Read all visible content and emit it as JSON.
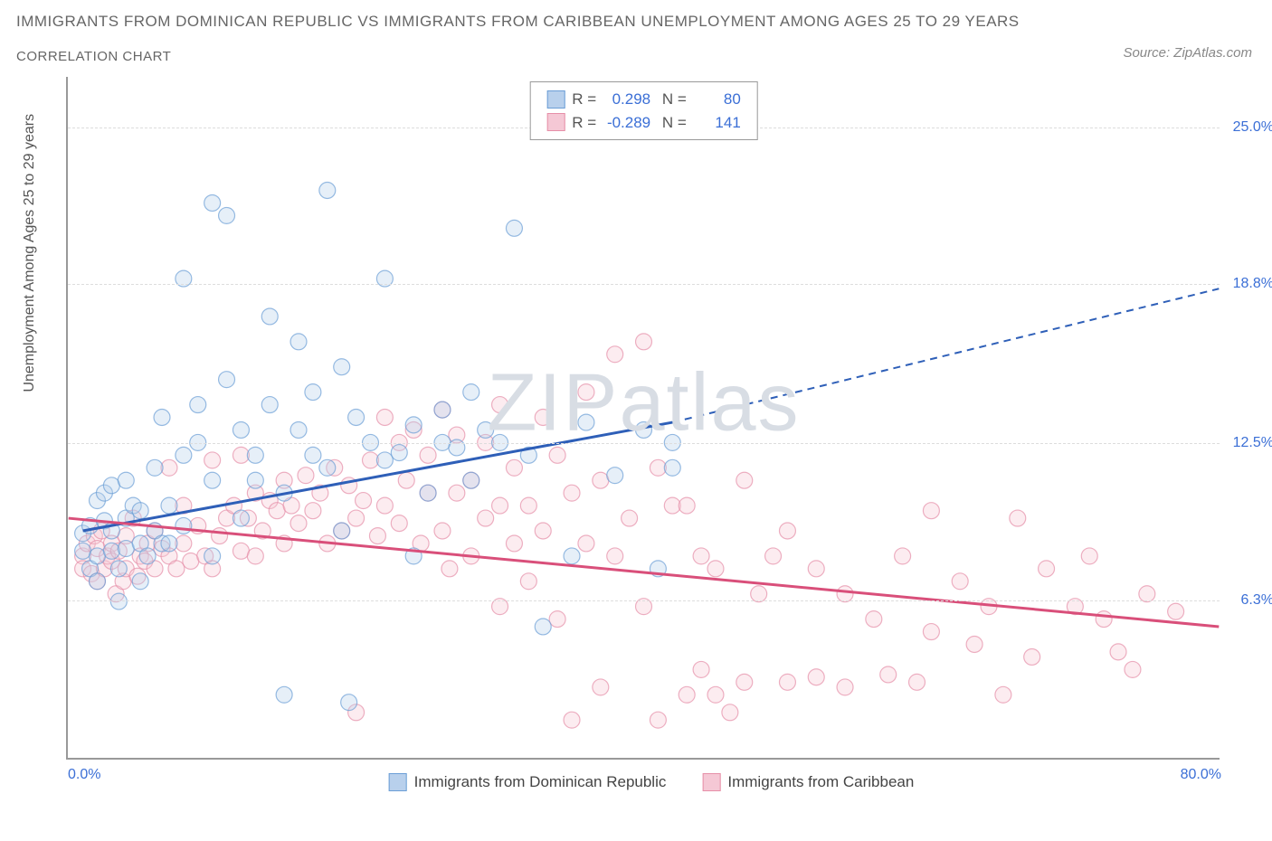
{
  "title": "IMMIGRANTS FROM DOMINICAN REPUBLIC VS IMMIGRANTS FROM CARIBBEAN UNEMPLOYMENT AMONG AGES 25 TO 29 YEARS",
  "subtitle": "CORRELATION CHART",
  "source": "Source: ZipAtlas.com",
  "ylabel": "Unemployment Among Ages 25 to 29 years",
  "watermark": "ZIPatlas",
  "chart": {
    "type": "scatter",
    "xlim": [
      0,
      80
    ],
    "ylim": [
      0,
      27
    ],
    "xticks": [
      {
        "pos": 0,
        "label": "0.0%"
      },
      {
        "pos": 80,
        "label": "80.0%"
      }
    ],
    "yticks": [
      {
        "pos": 6.3,
        "label": "6.3%"
      },
      {
        "pos": 12.5,
        "label": "12.5%"
      },
      {
        "pos": 18.8,
        "label": "18.8%"
      },
      {
        "pos": 25.0,
        "label": "25.0%"
      }
    ],
    "gridlines": [
      6.3,
      12.5,
      18.8,
      25.0
    ],
    "background_color": "#ffffff",
    "grid_color": "#dddddd",
    "axis_color": "#999999",
    "marker_radius": 9,
    "marker_opacity": 0.35,
    "series": [
      {
        "name": "Immigrants from Dominican Republic",
        "R": "0.298",
        "N": "80",
        "color": "#6b9ed6",
        "fill": "#b8d0ec",
        "line_color": "#2e5fb8",
        "trend": {
          "x1": 1,
          "y1": 9.0,
          "x2": 42,
          "y2": 13.3,
          "dash_x2": 80,
          "dash_y2": 18.6
        },
        "points": [
          [
            1,
            8.2
          ],
          [
            1,
            8.9
          ],
          [
            1.5,
            7.5
          ],
          [
            1.5,
            9.2
          ],
          [
            2,
            10.2
          ],
          [
            2,
            8.0
          ],
          [
            2,
            7.0
          ],
          [
            2.5,
            10.5
          ],
          [
            2.5,
            9.4
          ],
          [
            3,
            9.0
          ],
          [
            3,
            10.8
          ],
          [
            3,
            8.2
          ],
          [
            3.5,
            7.5
          ],
          [
            3.5,
            6.2
          ],
          [
            4,
            9.5
          ],
          [
            4,
            11.0
          ],
          [
            4,
            8.3
          ],
          [
            4.5,
            10.0
          ],
          [
            5,
            8.5
          ],
          [
            5,
            9.8
          ],
          [
            5,
            7.0
          ],
          [
            5.5,
            8.0
          ],
          [
            6,
            11.5
          ],
          [
            6,
            9.0
          ],
          [
            6.5,
            13.5
          ],
          [
            6.5,
            8.5
          ],
          [
            7,
            10.0
          ],
          [
            7,
            8.5
          ],
          [
            8,
            12.0
          ],
          [
            8,
            19.0
          ],
          [
            8,
            9.2
          ],
          [
            9,
            14.0
          ],
          [
            9,
            12.5
          ],
          [
            10,
            8.0
          ],
          [
            10,
            22.0
          ],
          [
            10,
            11.0
          ],
          [
            11,
            21.5
          ],
          [
            11,
            15.0
          ],
          [
            12,
            9.5
          ],
          [
            12,
            13.0
          ],
          [
            13,
            12.0
          ],
          [
            13,
            11.0
          ],
          [
            14,
            17.5
          ],
          [
            14,
            14.0
          ],
          [
            15,
            10.5
          ],
          [
            15,
            2.5
          ],
          [
            16,
            16.5
          ],
          [
            16,
            13.0
          ],
          [
            17,
            12.0
          ],
          [
            17,
            14.5
          ],
          [
            18,
            22.5
          ],
          [
            18,
            11.5
          ],
          [
            19,
            15.5
          ],
          [
            19,
            9.0
          ],
          [
            19.5,
            2.2
          ],
          [
            20,
            13.5
          ],
          [
            21,
            12.5
          ],
          [
            22,
            11.8
          ],
          [
            22,
            19.0
          ],
          [
            23,
            12.1
          ],
          [
            24,
            13.2
          ],
          [
            24,
            8.0
          ],
          [
            25,
            10.5
          ],
          [
            26,
            12.5
          ],
          [
            26,
            13.8
          ],
          [
            27,
            12.3
          ],
          [
            28,
            11.0
          ],
          [
            28,
            14.5
          ],
          [
            29,
            13.0
          ],
          [
            30,
            12.5
          ],
          [
            31,
            21.0
          ],
          [
            32,
            12.0
          ],
          [
            33,
            5.2
          ],
          [
            35,
            8.0
          ],
          [
            36,
            13.3
          ],
          [
            38,
            11.2
          ],
          [
            40,
            13.0
          ],
          [
            41,
            7.5
          ],
          [
            42,
            12.5
          ],
          [
            42,
            11.5
          ]
        ]
      },
      {
        "name": "Immigrants from Caribbean",
        "R": "-0.289",
        "N": "141",
        "color": "#e68fa8",
        "fill": "#f5c8d5",
        "line_color": "#d94f7a",
        "trend": {
          "x1": 0,
          "y1": 9.5,
          "x2": 80,
          "y2": 5.2
        },
        "points": [
          [
            1,
            8.0
          ],
          [
            1,
            7.5
          ],
          [
            1.3,
            8.5
          ],
          [
            1.6,
            7.3
          ],
          [
            1.8,
            8.8
          ],
          [
            2,
            7.0
          ],
          [
            2,
            8.3
          ],
          [
            2.3,
            9.0
          ],
          [
            2.5,
            7.5
          ],
          [
            2.7,
            8.0
          ],
          [
            3,
            8.5
          ],
          [
            3,
            7.8
          ],
          [
            3.3,
            6.5
          ],
          [
            3.5,
            8.2
          ],
          [
            3.8,
            7.0
          ],
          [
            4,
            7.5
          ],
          [
            4,
            8.8
          ],
          [
            4.5,
            9.5
          ],
          [
            4.8,
            7.2
          ],
          [
            5,
            8.0
          ],
          [
            5.3,
            7.8
          ],
          [
            5.5,
            8.5
          ],
          [
            6,
            7.5
          ],
          [
            6,
            9.0
          ],
          [
            6.5,
            8.3
          ],
          [
            7,
            11.5
          ],
          [
            7,
            8.0
          ],
          [
            7.5,
            7.5
          ],
          [
            8,
            10.0
          ],
          [
            8,
            8.5
          ],
          [
            8.5,
            7.8
          ],
          [
            9,
            9.2
          ],
          [
            9.5,
            8.0
          ],
          [
            10,
            11.8
          ],
          [
            10,
            7.5
          ],
          [
            10.5,
            8.8
          ],
          [
            11,
            9.5
          ],
          [
            11.5,
            10.0
          ],
          [
            12,
            8.2
          ],
          [
            12,
            12.0
          ],
          [
            12.5,
            9.5
          ],
          [
            13,
            10.5
          ],
          [
            13,
            8.0
          ],
          [
            13.5,
            9.0
          ],
          [
            14,
            10.2
          ],
          [
            14.5,
            9.8
          ],
          [
            15,
            11.0
          ],
          [
            15,
            8.5
          ],
          [
            15.5,
            10.0
          ],
          [
            16,
            9.3
          ],
          [
            16.5,
            11.2
          ],
          [
            17,
            9.8
          ],
          [
            17.5,
            10.5
          ],
          [
            18,
            8.5
          ],
          [
            18.5,
            11.5
          ],
          [
            19,
            9.0
          ],
          [
            19.5,
            10.8
          ],
          [
            20,
            1.8
          ],
          [
            20,
            9.5
          ],
          [
            20.5,
            10.2
          ],
          [
            21,
            11.8
          ],
          [
            21.5,
            8.8
          ],
          [
            22,
            13.5
          ],
          [
            22,
            10.0
          ],
          [
            23,
            12.5
          ],
          [
            23,
            9.3
          ],
          [
            23.5,
            11.0
          ],
          [
            24,
            13.0
          ],
          [
            24.5,
            8.5
          ],
          [
            25,
            10.5
          ],
          [
            25,
            12.0
          ],
          [
            26,
            9.0
          ],
          [
            26,
            13.8
          ],
          [
            26.5,
            7.5
          ],
          [
            27,
            10.5
          ],
          [
            27,
            12.8
          ],
          [
            28,
            11.0
          ],
          [
            28,
            8.0
          ],
          [
            29,
            9.5
          ],
          [
            29,
            12.5
          ],
          [
            30,
            14.0
          ],
          [
            30,
            10.0
          ],
          [
            30,
            6.0
          ],
          [
            31,
            11.5
          ],
          [
            31,
            8.5
          ],
          [
            32,
            10.0
          ],
          [
            32,
            7.0
          ],
          [
            33,
            13.5
          ],
          [
            33,
            9.0
          ],
          [
            34,
            12.0
          ],
          [
            34,
            5.5
          ],
          [
            35,
            10.5
          ],
          [
            35,
            1.5
          ],
          [
            36,
            8.5
          ],
          [
            36,
            14.5
          ],
          [
            37,
            11.0
          ],
          [
            37,
            2.8
          ],
          [
            38,
            8.0
          ],
          [
            38,
            16.0
          ],
          [
            39,
            9.5
          ],
          [
            40,
            16.5
          ],
          [
            40,
            6.0
          ],
          [
            41,
            11.5
          ],
          [
            41,
            1.5
          ],
          [
            42,
            10.0
          ],
          [
            43,
            2.5
          ],
          [
            43,
            10.0
          ],
          [
            44,
            8.0
          ],
          [
            44,
            3.5
          ],
          [
            45,
            7.5
          ],
          [
            45,
            2.5
          ],
          [
            46,
            1.8
          ],
          [
            47,
            11.0
          ],
          [
            47,
            3.0
          ],
          [
            48,
            6.5
          ],
          [
            49,
            8.0
          ],
          [
            50,
            9.0
          ],
          [
            50,
            3.0
          ],
          [
            52,
            7.5
          ],
          [
            52,
            3.2
          ],
          [
            54,
            6.5
          ],
          [
            54,
            2.8
          ],
          [
            56,
            5.5
          ],
          [
            57,
            3.3
          ],
          [
            58,
            8.0
          ],
          [
            59,
            3.0
          ],
          [
            60,
            9.8
          ],
          [
            60,
            5.0
          ],
          [
            62,
            7.0
          ],
          [
            63,
            4.5
          ],
          [
            64,
            6.0
          ],
          [
            65,
            2.5
          ],
          [
            66,
            9.5
          ],
          [
            67,
            4.0
          ],
          [
            68,
            7.5
          ],
          [
            70,
            6.0
          ],
          [
            71,
            8.0
          ],
          [
            72,
            5.5
          ],
          [
            73,
            4.2
          ],
          [
            74,
            3.5
          ],
          [
            75,
            6.5
          ],
          [
            77,
            5.8
          ]
        ]
      }
    ]
  },
  "bottom_legend": [
    {
      "label": "Immigrants from Dominican Republic",
      "fill": "#b8d0ec",
      "border": "#6b9ed6"
    },
    {
      "label": "Immigrants from Caribbean",
      "fill": "#f5c8d5",
      "border": "#e68fa8"
    }
  ]
}
